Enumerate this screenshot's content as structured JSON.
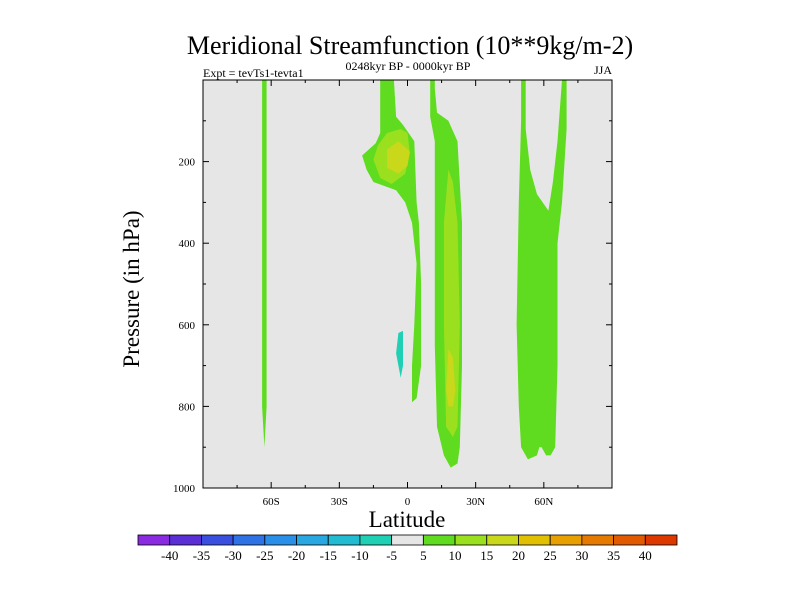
{
  "chart_data": {
    "type": "contour",
    "title": "Meridional Streamfunction (10**9kg/m-2)",
    "subtitle_left": "Expt = tevTs1-tevta1",
    "subtitle_center": "0248kyr BP - 0000kyr BP",
    "subtitle_right": "JJA",
    "xlabel": "Latitude",
    "ylabel": "Pressure (in hPa)",
    "xlim": [
      -90,
      90
    ],
    "ylim": [
      1000,
      0
    ],
    "x_ticks": [
      {
        "value": -60,
        "label": "60S"
      },
      {
        "value": -30,
        "label": "30S"
      },
      {
        "value": 0,
        "label": "0"
      },
      {
        "value": 30,
        "label": "30N"
      },
      {
        "value": 60,
        "label": "60N"
      }
    ],
    "y_ticks": [
      {
        "value": 200,
        "label": "200"
      },
      {
        "value": 400,
        "label": "400"
      },
      {
        "value": 600,
        "label": "600"
      },
      {
        "value": 800,
        "label": "800"
      },
      {
        "value": 1000,
        "label": "1000"
      }
    ],
    "background_color": "#e6e6e6",
    "colorbar": {
      "levels": [
        "-40",
        "-35",
        "-30",
        "-25",
        "-20",
        "-15",
        "-10",
        "-5",
        "5",
        "10",
        "15",
        "20",
        "25",
        "30",
        "35",
        "40"
      ],
      "colors": [
        "#8a2be2",
        "#5a2fd6",
        "#3a4fe0",
        "#2f72e6",
        "#2a8fe8",
        "#28a7e0",
        "#22bcd2",
        "#1fd0b4",
        "#e6e6e6",
        "#5fdc1f",
        "#9be01f",
        "#c9d81a",
        "#e0c000",
        "#e8a000",
        "#e67a00",
        "#e25a00",
        "#dc3800"
      ]
    },
    "regions": [
      {
        "level": "5",
        "color": "#5fdc1f",
        "outline": [
          [
            -64,
            0
          ],
          [
            -62,
            0
          ],
          [
            -62,
            200
          ],
          [
            -62,
            800
          ],
          [
            -63,
            900
          ],
          [
            -64,
            800
          ],
          [
            -64,
            200
          ]
        ]
      },
      {
        "level": "5",
        "color": "#5fdc1f",
        "outline": [
          [
            -8,
            0
          ],
          [
            -6,
            0
          ],
          [
            -5,
            90
          ],
          [
            -2,
            110
          ],
          [
            3,
            150
          ],
          [
            4,
            300
          ],
          [
            5,
            350
          ],
          [
            6,
            500
          ],
          [
            6,
            700
          ],
          [
            4,
            780
          ],
          [
            2,
            790
          ],
          [
            2,
            700
          ],
          [
            3,
            600
          ],
          [
            4,
            450
          ],
          [
            2,
            350
          ],
          [
            -1,
            300
          ],
          [
            -5,
            270
          ],
          [
            -10,
            260
          ],
          [
            -15,
            250
          ],
          [
            -18,
            220
          ],
          [
            -20,
            185
          ],
          [
            -14,
            155
          ],
          [
            -12,
            130
          ],
          [
            -12,
            0
          ]
        ]
      },
      {
        "level": "10",
        "color": "#9be01f",
        "outline": [
          [
            -13,
            160
          ],
          [
            -9,
            130
          ],
          [
            -3,
            120
          ],
          [
            0,
            130
          ],
          [
            1,
            180
          ],
          [
            -1,
            230
          ],
          [
            -7,
            255
          ],
          [
            -12,
            240
          ],
          [
            -15,
            195
          ]
        ]
      },
      {
        "level": "15",
        "color": "#c9d81a",
        "outline": [
          [
            -9,
            170
          ],
          [
            -4,
            150
          ],
          [
            1,
            175
          ],
          [
            0,
            210
          ],
          [
            -4,
            230
          ],
          [
            -9,
            215
          ]
        ]
      },
      {
        "level": "5",
        "color": "#5fdc1f",
        "outline": [
          [
            12,
            0
          ],
          [
            12,
            20
          ],
          [
            13,
            80
          ],
          [
            18,
            100
          ],
          [
            22,
            150
          ],
          [
            24,
            350
          ],
          [
            24,
            700
          ],
          [
            23,
            900
          ],
          [
            22,
            940
          ],
          [
            19,
            950
          ],
          [
            16,
            920
          ],
          [
            13,
            850
          ],
          [
            12,
            650
          ],
          [
            12,
            350
          ],
          [
            12,
            150
          ],
          [
            10,
            90
          ],
          [
            10,
            0
          ]
        ]
      },
      {
        "level": "10",
        "color": "#9be01f",
        "outline": [
          [
            18,
            220
          ],
          [
            20,
            250
          ],
          [
            22,
            350
          ],
          [
            23,
            600
          ],
          [
            22,
            850
          ],
          [
            20,
            875
          ],
          [
            17,
            850
          ],
          [
            16,
            600
          ],
          [
            16,
            350
          ]
        ]
      },
      {
        "level": "15",
        "color": "#c9d81a",
        "outline": [
          [
            18,
            660
          ],
          [
            20,
            680
          ],
          [
            21,
            760
          ],
          [
            20,
            800
          ],
          [
            18,
            800
          ],
          [
            17,
            760
          ]
        ]
      },
      {
        "level": "5",
        "color": "#5fdc1f",
        "outline": [
          [
            50,
            0
          ],
          [
            52,
            0
          ],
          [
            52,
            120
          ],
          [
            54,
            220
          ],
          [
            57,
            280
          ],
          [
            62,
            320
          ],
          [
            64,
            250
          ],
          [
            66,
            150
          ],
          [
            68,
            0
          ],
          [
            70,
            0
          ],
          [
            70,
            120
          ],
          [
            68,
            300
          ],
          [
            66,
            400
          ],
          [
            66,
            700
          ],
          [
            65,
            900
          ],
          [
            63,
            920
          ],
          [
            61,
            920
          ],
          [
            59,
            900
          ],
          [
            58,
            900
          ],
          [
            57,
            920
          ],
          [
            53,
            930
          ],
          [
            50,
            900
          ],
          [
            49,
            800
          ],
          [
            48,
            600
          ],
          [
            49,
            300
          ],
          [
            50,
            100
          ]
        ]
      },
      {
        "level": "-5",
        "color": "#1fd0b4",
        "outline": [
          [
            -4,
            620
          ],
          [
            -2,
            615
          ],
          [
            -2,
            700
          ],
          [
            -3,
            730
          ],
          [
            -5,
            670
          ]
        ]
      }
    ]
  }
}
